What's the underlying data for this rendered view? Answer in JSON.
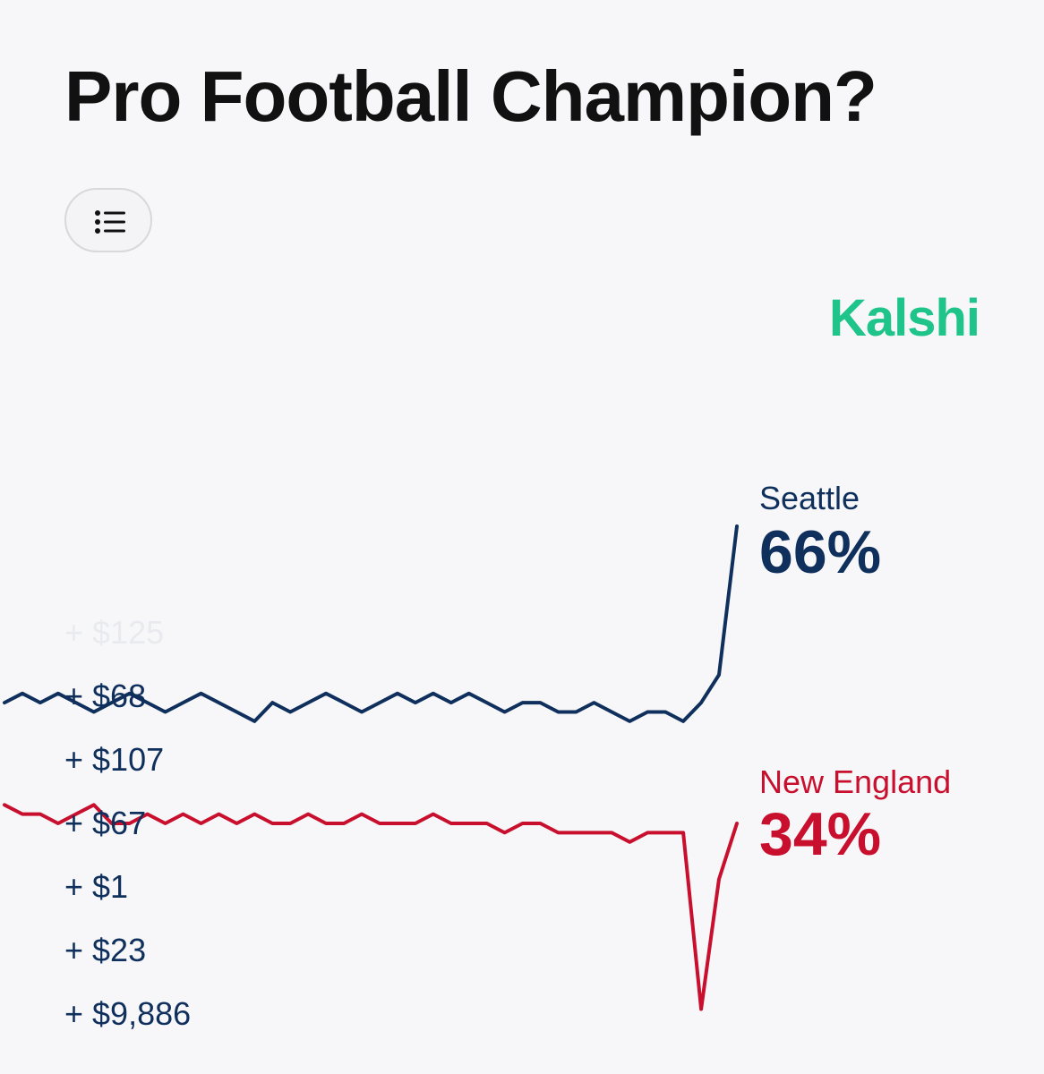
{
  "header": {
    "title": "Pro Football Champion?"
  },
  "toolbar": {
    "list_button_icon": "list-icon"
  },
  "brand": {
    "name": "Kalshi",
    "color": "#1fc48a"
  },
  "legend": [
    {
      "team": "Seattle",
      "percent": "66%",
      "color": "#0f2f5c"
    },
    {
      "team": "New England",
      "percent": "34%",
      "color": "#c8102e"
    }
  ],
  "bets_faded": "+ $125",
  "bets": [
    {
      "text": "+ $68"
    },
    {
      "text": "+ $107"
    },
    {
      "text": "+ $67"
    },
    {
      "text": "+ $1"
    },
    {
      "text": "+ $23"
    },
    {
      "text": "+ $9,886"
    }
  ],
  "chart_data": {
    "type": "line",
    "title": "",
    "xlabel": "",
    "ylabel": "",
    "series": [
      {
        "name": "Seattle",
        "color": "#0f2f5c",
        "values": [
          47,
          48,
          47,
          48,
          47,
          46,
          47,
          48,
          47,
          46,
          47,
          48,
          47,
          46,
          45,
          47,
          46,
          47,
          48,
          47,
          46,
          47,
          48,
          47,
          48,
          47,
          48,
          47,
          46,
          47,
          47,
          46,
          46,
          47,
          46,
          45,
          46,
          46,
          45,
          47,
          50,
          66
        ]
      },
      {
        "name": "New England",
        "color": "#c8102e",
        "values": [
          36,
          35,
          35,
          34,
          35,
          36,
          34,
          34,
          35,
          34,
          35,
          34,
          35,
          34,
          35,
          34,
          34,
          35,
          34,
          34,
          35,
          34,
          34,
          34,
          35,
          34,
          34,
          34,
          33,
          34,
          34,
          33,
          33,
          33,
          33,
          32,
          33,
          33,
          33,
          14,
          28,
          34
        ]
      }
    ]
  }
}
